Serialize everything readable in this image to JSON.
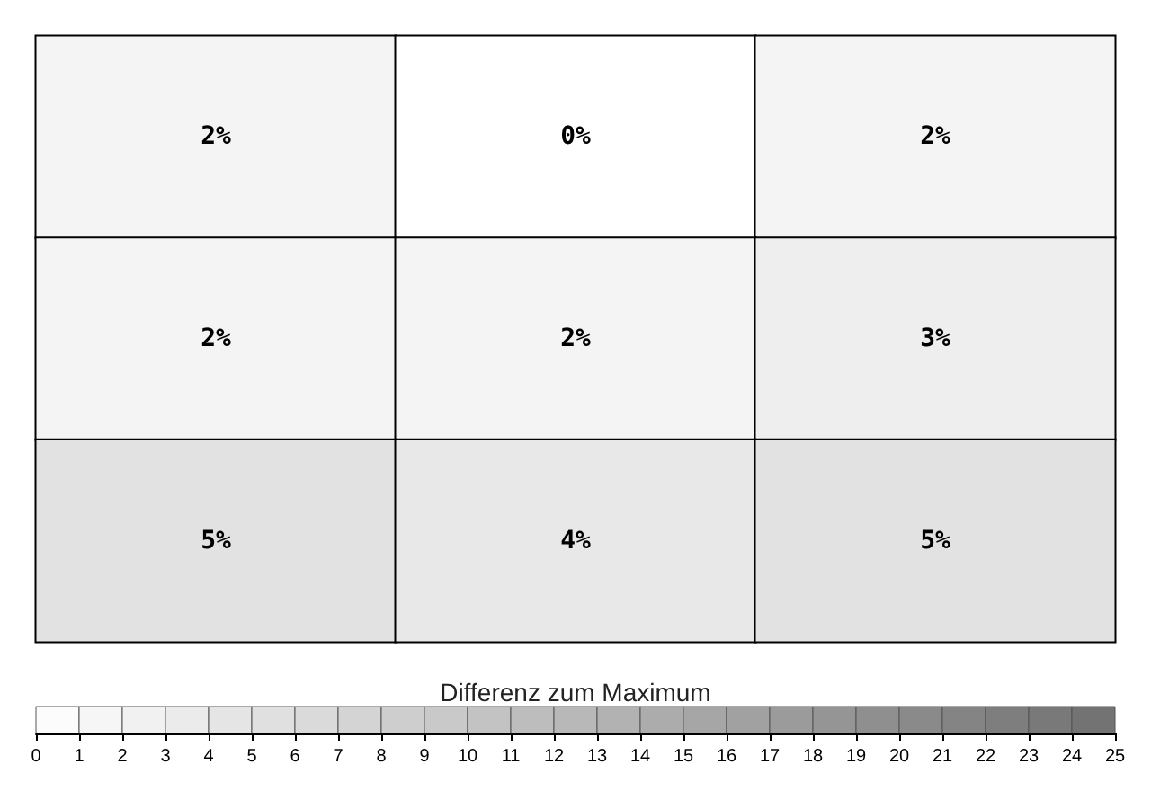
{
  "chart_data": {
    "type": "heatmap",
    "clabel": "Differenz zum Maximum",
    "categories": [
      null,
      null,
      null
    ],
    "y_categories": [
      null,
      null,
      null
    ],
    "cells": [
      [
        2,
        0,
        2
      ],
      [
        2,
        2,
        3
      ],
      [
        5,
        4,
        5
      ]
    ],
    "cell_labels": [
      [
        "2%",
        "0%",
        "2%"
      ],
      [
        "2%",
        "2%",
        "3%"
      ],
      [
        "5%",
        "4%",
        "5%"
      ]
    ],
    "clim": [
      0,
      25
    ],
    "cticks": [
      0,
      1,
      2,
      3,
      4,
      5,
      6,
      7,
      8,
      9,
      10,
      11,
      12,
      13,
      14,
      15,
      16,
      17,
      18,
      19,
      20,
      21,
      22,
      23,
      24,
      25
    ]
  }
}
